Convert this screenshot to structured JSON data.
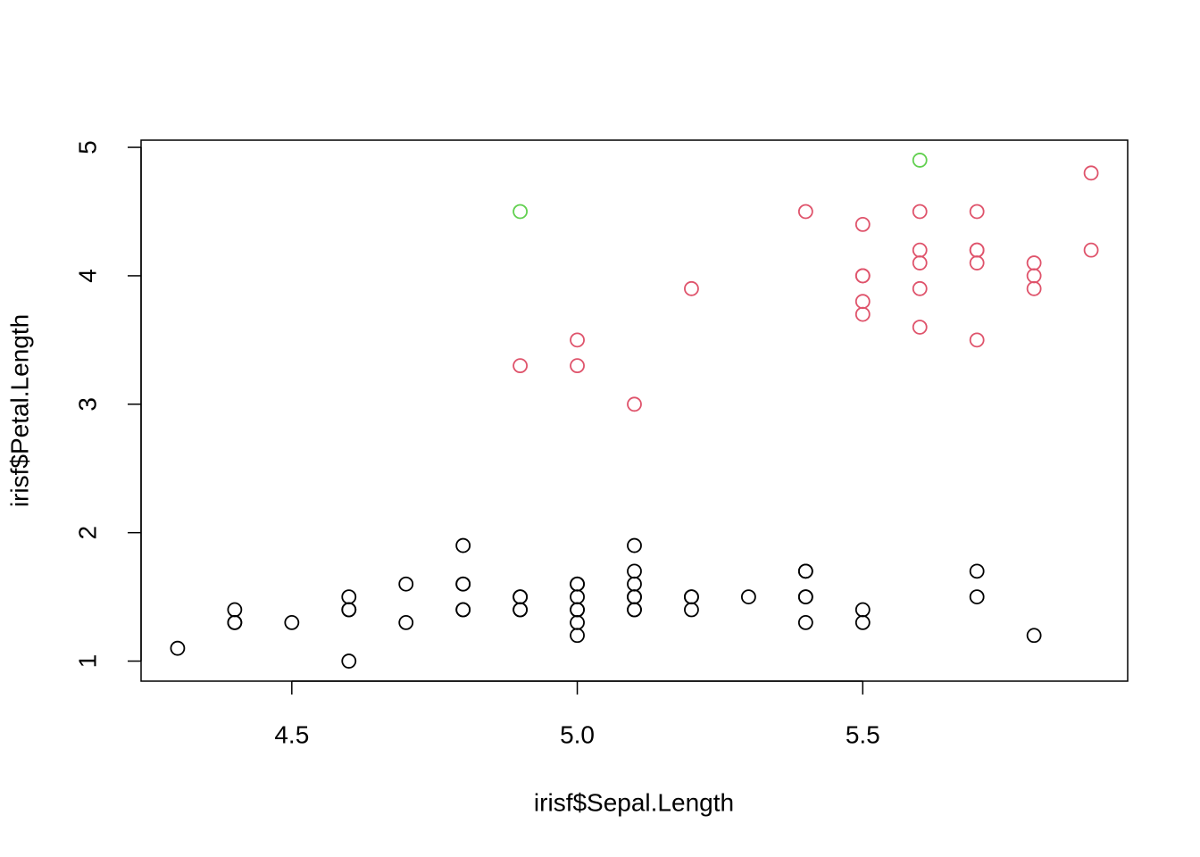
{
  "chart_data": {
    "type": "scatter",
    "x_label": "irisf$Sepal.Length",
    "y_label": "irisf$Petal.Length",
    "xlim": [
      4.236,
      5.964
    ],
    "ylim": [
      0.844,
      5.056
    ],
    "xticks": [
      4.5,
      {
        "value": 5,
        "label": "5.0"
      },
      5.5
    ],
    "yticks": [
      1,
      2,
      3,
      4,
      5
    ],
    "grid": false,
    "series": [
      {
        "color": "#000000",
        "x": [
          4.3,
          4.4,
          4.4,
          4.4,
          4.5,
          4.6,
          4.6,
          4.6,
          4.6,
          4.7,
          4.7,
          4.8,
          4.8,
          4.8,
          4.8,
          4.8,
          4.9,
          4.9,
          4.9,
          4.9,
          5.0,
          5.0,
          5.0,
          5.0,
          5.0,
          5.0,
          5.0,
          5.1,
          5.1,
          5.1,
          5.1,
          5.1,
          5.1,
          5.1,
          5.2,
          5.2,
          5.2,
          5.3,
          5.4,
          5.4,
          5.4,
          5.4,
          5.4,
          5.5,
          5.5,
          5.7,
          5.7,
          5.8
        ],
        "values": [
          1.1,
          1.4,
          1.3,
          1.3,
          1.3,
          1.5,
          1.4,
          1.4,
          1.0,
          1.6,
          1.3,
          1.9,
          1.6,
          1.6,
          1.4,
          1.4,
          1.5,
          1.5,
          1.4,
          1.4,
          1.6,
          1.6,
          1.5,
          1.4,
          1.4,
          1.3,
          1.2,
          1.9,
          1.7,
          1.6,
          1.5,
          1.5,
          1.4,
          1.4,
          1.5,
          1.5,
          1.4,
          1.5,
          1.7,
          1.7,
          1.5,
          1.5,
          1.3,
          1.4,
          1.3,
          1.7,
          1.5,
          1.2
        ]
      },
      {
        "color": "#DF536B",
        "x": [
          4.9,
          5.0,
          5.0,
          5.1,
          5.2,
          5.4,
          5.5,
          5.5,
          5.5,
          5.5,
          5.5,
          5.6,
          5.6,
          5.6,
          5.6,
          5.6,
          5.7,
          5.7,
          5.7,
          5.7,
          5.7,
          5.8,
          5.8,
          5.8,
          5.9,
          5.9
        ],
        "values": [
          3.3,
          3.5,
          3.3,
          3.0,
          3.9,
          4.5,
          4.4,
          4.0,
          4.0,
          3.8,
          3.7,
          4.5,
          4.2,
          4.1,
          3.9,
          3.6,
          4.5,
          4.2,
          4.2,
          4.1,
          3.5,
          4.1,
          4.0,
          3.9,
          4.8,
          4.2
        ]
      },
      {
        "color": "#61D04F",
        "x": [
          4.9,
          5.6
        ],
        "values": [
          4.5,
          4.9
        ]
      }
    ]
  }
}
